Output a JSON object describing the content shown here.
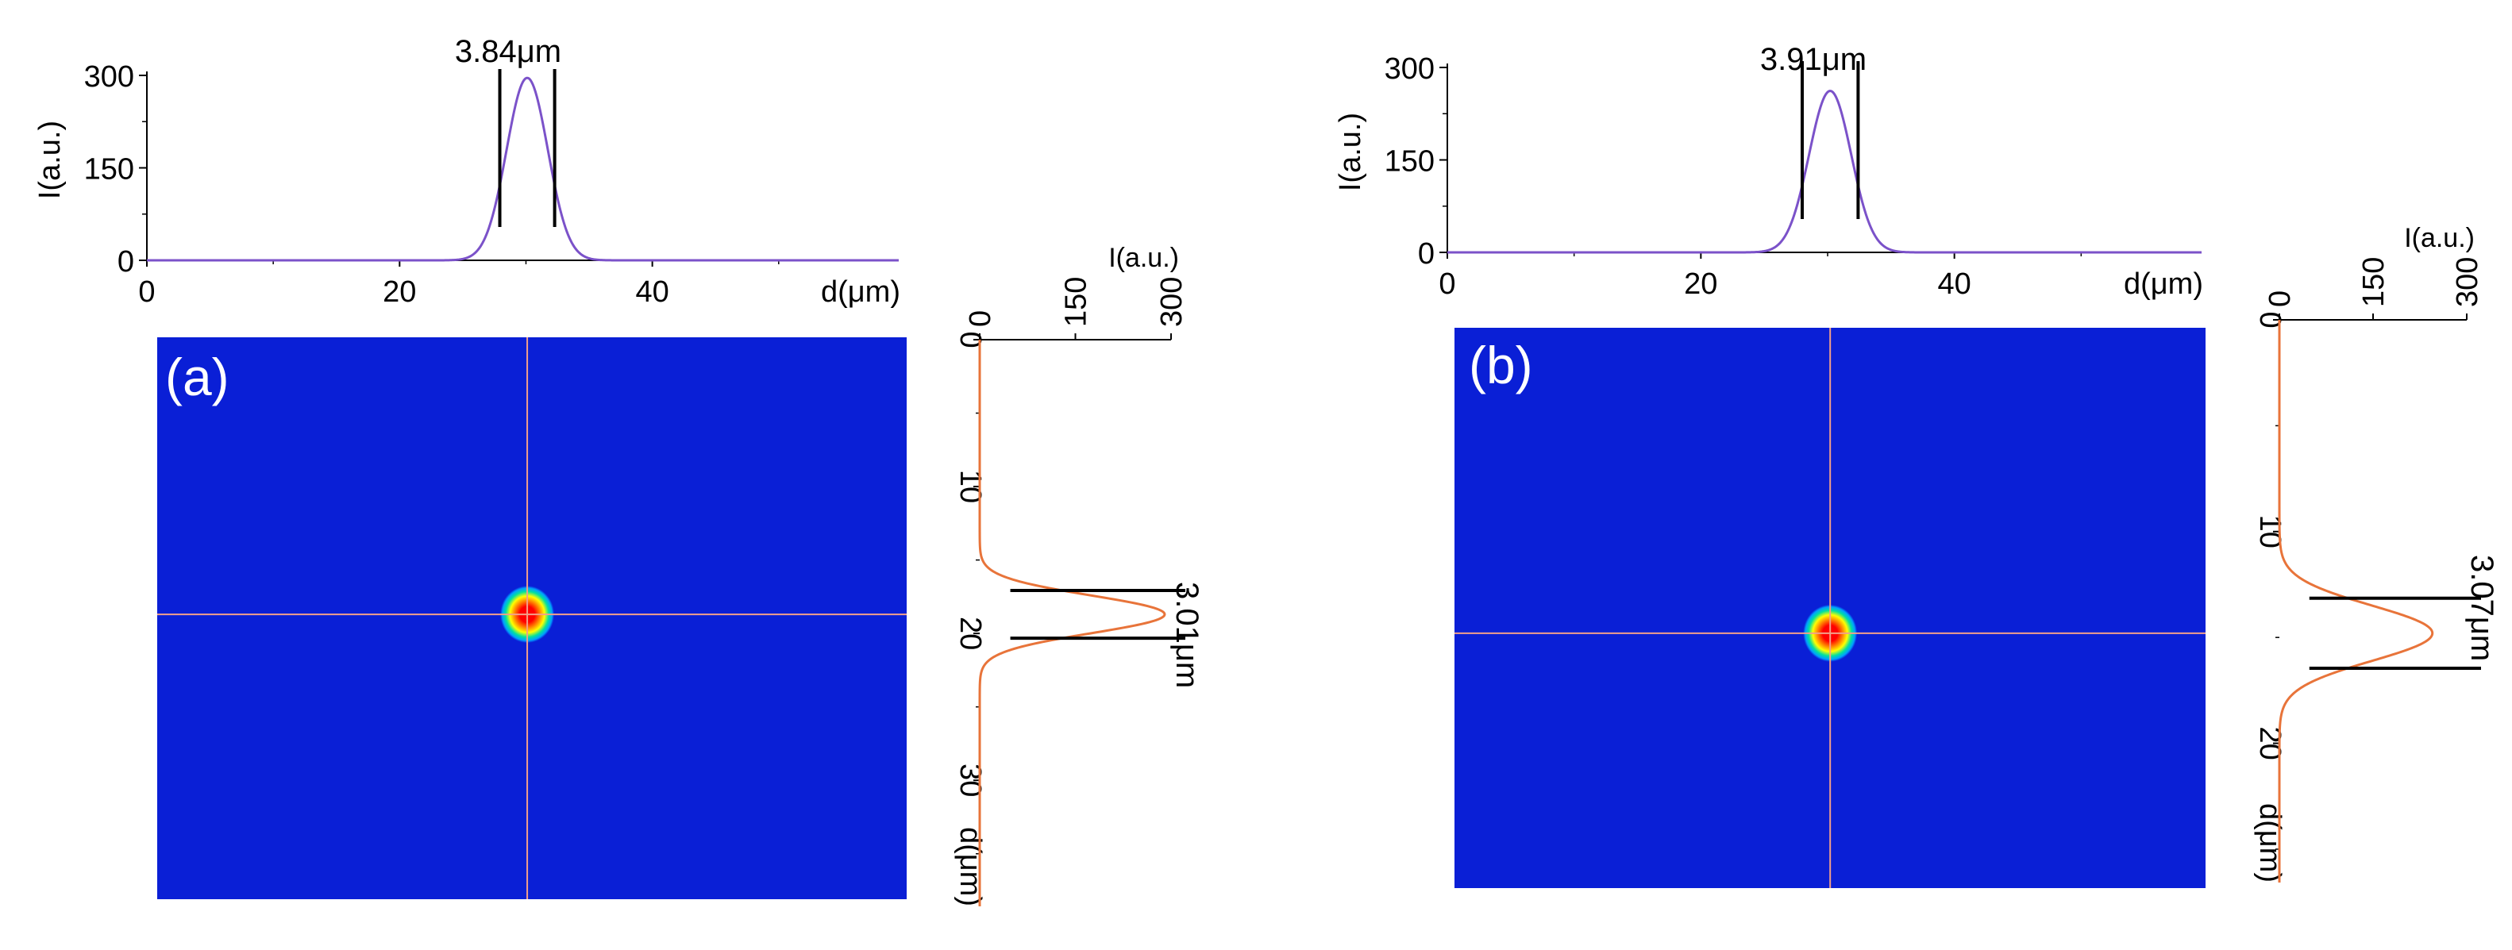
{
  "panels": [
    {
      "label": "(a)",
      "beam_image": {
        "background_color": "#0a1fd6",
        "crosshair_color": "#f2a08a",
        "spot_colors": [
          "#ff0000",
          "#ff8c00",
          "#ffff00",
          "#00e0a0",
          "#00a0ff"
        ]
      },
      "top_profile": {
        "type": "line",
        "ylabel": "I(a.u.)",
        "xlabel": "d(μm)",
        "xlim": [
          0,
          59.5
        ],
        "ylim": [
          0,
          300
        ],
        "xticks": [
          "0",
          "20",
          "40"
        ],
        "yticks": [
          "0",
          "150",
          "300"
        ],
        "peak_x": 30.1,
        "peak_y": 296,
        "fwhm_label": "3.84μm",
        "fwhm": 3.84,
        "color": "#7b52c9"
      },
      "side_profile": {
        "type": "line",
        "ylabel": "I(a.u.)",
        "xlabel": "d(μm)",
        "dlim": [
          0,
          37.5
        ],
        "ilim": [
          0,
          300
        ],
        "dticks": [
          "0",
          "10",
          "20",
          "30"
        ],
        "iticks": [
          "0",
          "150",
          "300"
        ],
        "peak_d": 18.7,
        "peak_i": 290,
        "fwhm_label": "3.01μm",
        "fwhm": 3.01,
        "color": "#e8743a"
      }
    },
    {
      "label": "(b)",
      "beam_image": {
        "background_color": "#0a1fd6",
        "crosshair_color": "#f2a08a",
        "spot_colors": [
          "#ff0000",
          "#ff8c00",
          "#ffff00",
          "#00e0a0",
          "#00a0ff"
        ]
      },
      "top_profile": {
        "type": "line",
        "ylabel": "I(a.u.)",
        "xlabel": "d(μm)",
        "xlim": [
          0,
          59.5
        ],
        "ylim": [
          0,
          300
        ],
        "xticks": [
          "0",
          "20",
          "40"
        ],
        "yticks": [
          "0",
          "150",
          "300"
        ],
        "peak_x": 30.2,
        "peak_y": 262,
        "fwhm_label": "3.91μm",
        "fwhm": 3.91,
        "color": "#7b52c9"
      },
      "side_profile": {
        "type": "line",
        "ylabel": "I(a.u.)",
        "xlabel": "d(μm)",
        "dlim": [
          0,
          28
        ],
        "ilim": [
          0,
          300
        ],
        "dticks": [
          "0",
          "10",
          "20"
        ],
        "iticks": [
          "0",
          "150",
          "300"
        ],
        "peak_d": 14.8,
        "peak_i": 245,
        "fwhm_label": "3.07μm",
        "fwhm": 3.07,
        "color": "#e8743a"
      }
    }
  ],
  "chart_data": [
    {
      "type": "line",
      "panel": "(a)",
      "name": "horizontal profile",
      "xlabel": "d(μm)",
      "ylabel": "I(a.u.)",
      "xlim": [
        0,
        59.5
      ],
      "ylim": [
        0,
        300
      ],
      "peak": {
        "x": 30.1,
        "y": 296
      },
      "fwhm": 3.84
    },
    {
      "type": "line",
      "panel": "(a)",
      "name": "vertical profile",
      "xlabel": "d(μm)",
      "ylabel": "I(a.u.)",
      "xlim": [
        0,
        37.5
      ],
      "ylim": [
        0,
        300
      ],
      "peak": {
        "x": 18.7,
        "y": 290
      },
      "fwhm": 3.01
    },
    {
      "type": "line",
      "panel": "(b)",
      "name": "horizontal profile",
      "xlabel": "d(μm)",
      "ylabel": "I(a.u.)",
      "xlim": [
        0,
        59.5
      ],
      "ylim": [
        0,
        300
      ],
      "peak": {
        "x": 30.2,
        "y": 262
      },
      "fwhm": 3.91
    },
    {
      "type": "line",
      "panel": "(b)",
      "name": "vertical profile",
      "xlabel": "d(μm)",
      "ylabel": "I(a.u.)",
      "xlim": [
        0,
        28
      ],
      "ylim": [
        0,
        300
      ],
      "peak": {
        "x": 14.8,
        "y": 245
      },
      "fwhm": 3.07
    }
  ]
}
